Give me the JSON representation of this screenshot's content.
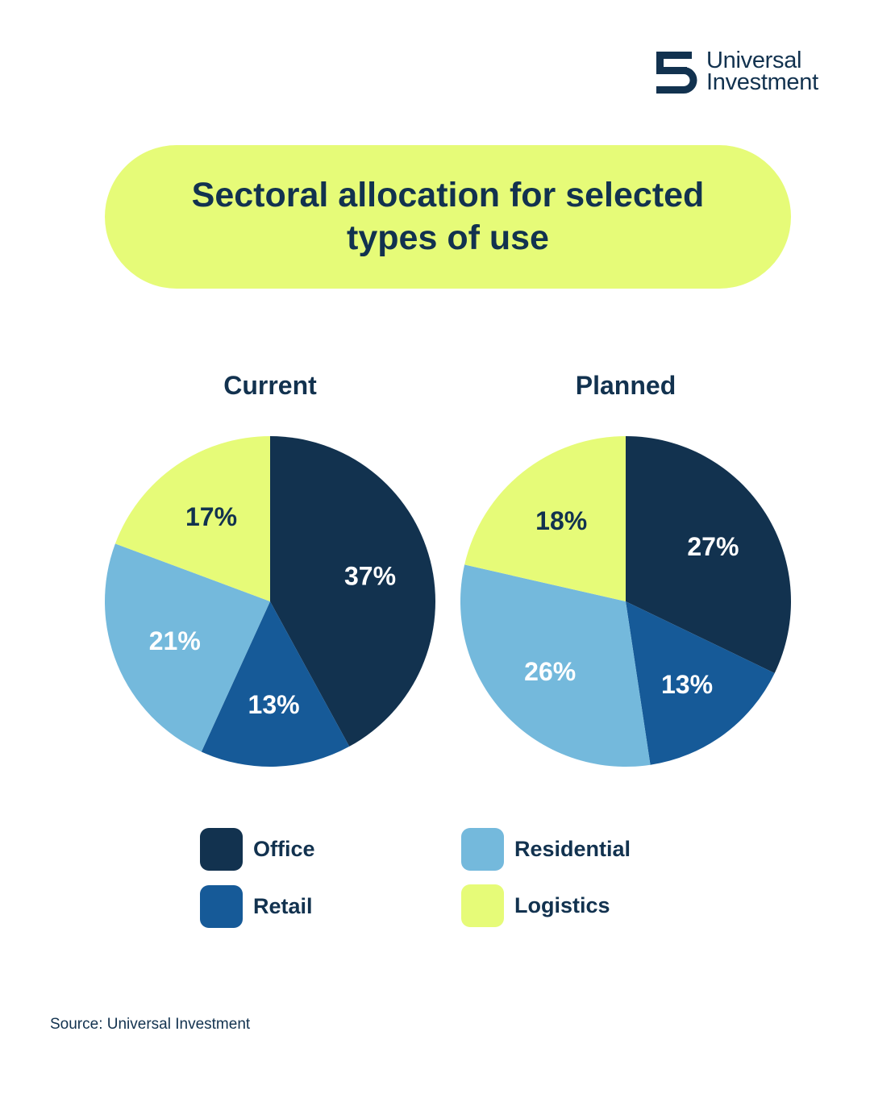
{
  "logo": {
    "line1": "Universal",
    "line2": "Investment",
    "icon": "universal-investment-logo-icon"
  },
  "title": "Sectoral allocation for selected types of use",
  "colors": {
    "Office": "#12324f",
    "Retail": "#165a98",
    "Residential": "#74b9dc",
    "Logistics": "#e6fb78"
  },
  "legend": [
    {
      "label": "Office",
      "color": "#12324f"
    },
    {
      "label": "Retail",
      "color": "#165a98"
    },
    {
      "label": "Residential",
      "color": "#74b9dc"
    },
    {
      "label": "Logistics",
      "color": "#e6fb78"
    }
  ],
  "chart_data": [
    {
      "type": "pie",
      "title": "Current",
      "slices": [
        {
          "label": "Office",
          "value": 37,
          "display": "37%"
        },
        {
          "label": "Retail",
          "value": 13,
          "display": "13%"
        },
        {
          "label": "Residential",
          "value": 21,
          "display": "21%"
        },
        {
          "label": "Logistics",
          "value": 17,
          "display": "17%"
        }
      ]
    },
    {
      "type": "pie",
      "title": "Planned",
      "slices": [
        {
          "label": "Office",
          "value": 27,
          "display": "27%"
        },
        {
          "label": "Retail",
          "value": 13,
          "display": "13%"
        },
        {
          "label": "Residential",
          "value": 26,
          "display": "26%"
        },
        {
          "label": "Logistics",
          "value": 18,
          "display": "18%"
        }
      ]
    }
  ],
  "source": "Source: Universal Investment"
}
